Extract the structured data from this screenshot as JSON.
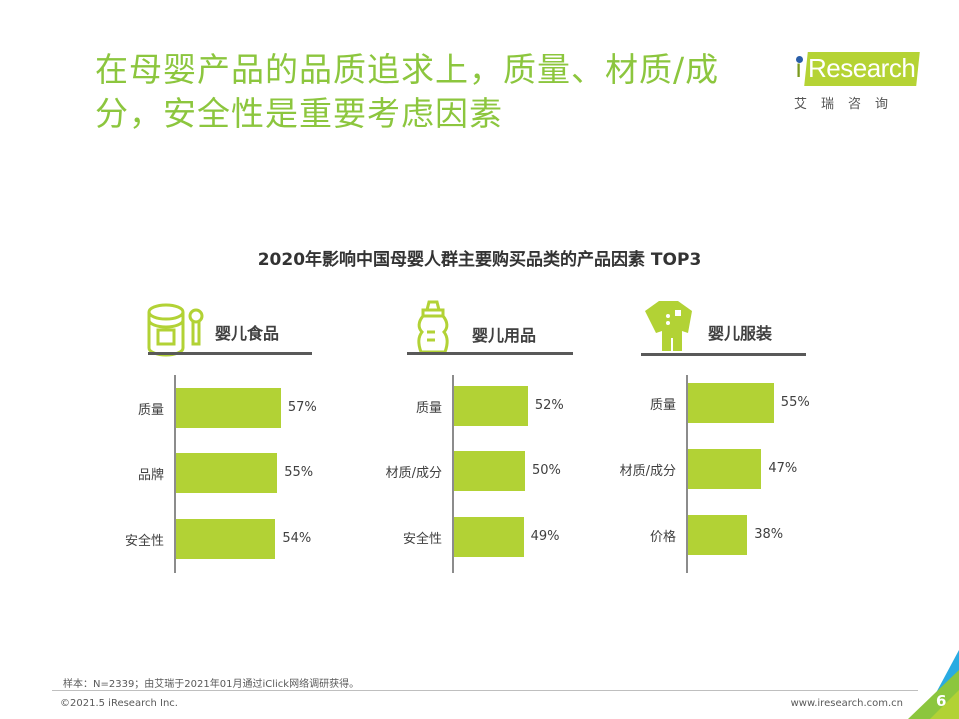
{
  "header": {
    "title": "在母婴产品的品质追求上，质量、材质/成分，安全性是重要考虑因素"
  },
  "logo": {
    "text": "iResearch",
    "cn": "艾瑞咨询"
  },
  "chart_data": [
    {
      "type": "bar",
      "orientation": "horizontal",
      "title": "2020年影响中国母婴人群主要购买品类的产品因素 TOP3",
      "panel": "婴儿食品",
      "icon": "formula-can-spoon-icon",
      "categories": [
        "质量",
        "品牌",
        "安全性"
      ],
      "values": [
        57,
        55,
        54
      ],
      "labels": [
        "57%",
        "55%",
        "54%"
      ],
      "color": "#b2d235"
    },
    {
      "type": "bar",
      "orientation": "horizontal",
      "panel": "婴儿用品",
      "icon": "baby-bottle-icon",
      "categories": [
        "质量",
        "材质/成分",
        "安全性"
      ],
      "values": [
        52,
        50,
        49
      ],
      "labels": [
        "52%",
        "50%",
        "49%"
      ],
      "color": "#b2d235"
    },
    {
      "type": "bar",
      "orientation": "horizontal",
      "panel": "婴儿服装",
      "icon": "baby-onesie-icon",
      "categories": [
        "质量",
        "材质/成分",
        "价格"
      ],
      "values": [
        55,
        47,
        38
      ],
      "labels": [
        "55%",
        "47%",
        "38%"
      ],
      "color": "#b2d235"
    }
  ],
  "chart_title": "2020年影响中国母婴人群主要购买品类的产品因素 TOP3",
  "footer": {
    "note": "样本：N=2339；由艾瑞于2021年01月通过iClick网络调研获得。",
    "copyright": "©2021.5 iResearch Inc.",
    "site": "www.iresearch.com.cn",
    "page": "6"
  },
  "colors": {
    "title": "#8cc63e",
    "bar": "#b2d235",
    "accent_blue": "#29abe2"
  }
}
